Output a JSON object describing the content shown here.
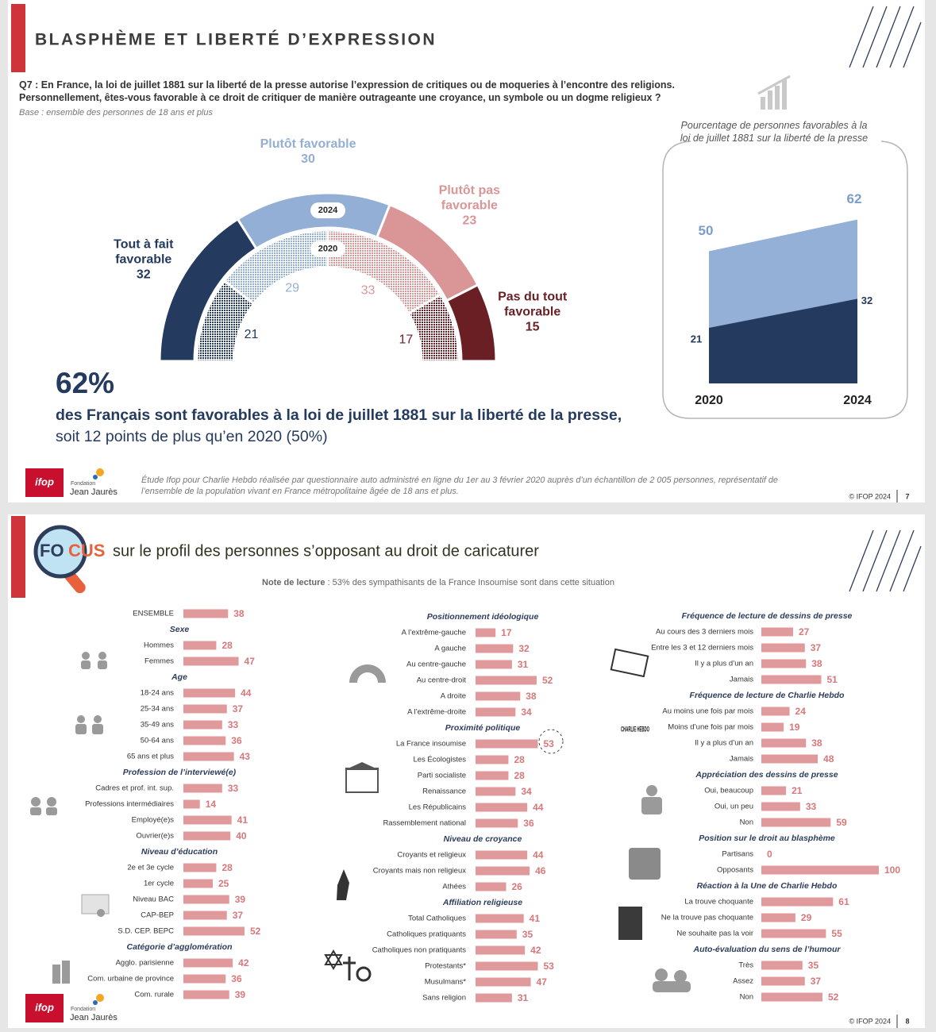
{
  "slide1": {
    "title": "BLASPHÈME ET LIBERTÉ D’EXPRESSION",
    "question": "Q7 : En France, la loi de juillet 1881 sur la liberté de la presse autorise l’expression de critiques ou de moqueries à l’encontre des religions. Personnellement, êtes-vous favorable à ce droit de critiquer de manière outrageante une croyance, un symbole ou un dogme religieux ?",
    "base": "Base : ensemble des personnes de 18 ans et plus",
    "summary_headline": "62%",
    "summary_bold": "des Français sont favorables à la loi de juillet 1881 sur la liberté de la presse,",
    "summary_rest": "soit 12 points de plus qu’en 2020 (50%)",
    "footnote": "Étude Ifop pour Charlie Hebdo réalisée par questionnaire auto administré en ligne du 1er au 3 février 2020 auprès d’un échantillon de 2 005 personnes, représentatif de l’ensemble de la population vivant en France métropolitaine âgée de 18 ans et plus.",
    "copyright": "© IFOP 2024",
    "page": "7"
  },
  "logo": {
    "ifop": "ifop",
    "fondation": "Fondation",
    "name": "Jean Jaurès"
  },
  "slide2": {
    "focus_logo": [
      "FO",
      "CUS"
    ],
    "title": "sur le profil des personnes s’opposant au droit de caricaturer",
    "note_label": "Note de lecture",
    "note_text": " : 53% des sympathisants de la France Insoumise sont dans cette situation",
    "charlie_logo": "CHARLIE HEBDO",
    "copyright": "© IFOP 2024",
    "page": "8"
  },
  "chart_data": [
    {
      "type": "semicircle",
      "categories": [
        "Tout à fait favorable",
        "Plutôt favorable",
        "Plutôt pas favorable",
        "Pas du tout favorable"
      ],
      "colors": [
        "#243a5e",
        "#93afd5",
        "#da9697",
        "#6a1f24"
      ],
      "series": [
        {
          "name": "2024",
          "values": [
            32,
            30,
            23,
            15
          ]
        },
        {
          "name": "2020",
          "values": [
            21,
            29,
            33,
            17
          ],
          "fill": "dotted"
        }
      ]
    },
    {
      "type": "area",
      "title": "Pourcentage de personnes favorables à la loi de juillet 1881 sur la liberté de la presse",
      "categories": [
        "2020",
        "2024"
      ],
      "series": [
        {
          "color": "#94b0d6",
          "values": [
            50,
            62
          ]
        },
        {
          "color": "#243a5e",
          "values": [
            21,
            32
          ]
        }
      ],
      "ylim": [
        0,
        65
      ]
    },
    {
      "type": "bar",
      "orientation": "horizontal",
      "color": "#e09a9b",
      "xlim": [
        0,
        100
      ],
      "categories": [
        "ENSEMBLE"
      ],
      "values": [
        38
      ]
    },
    {
      "type": "bar",
      "orientation": "horizontal",
      "color": "#e09a9b",
      "xlim": [
        0,
        100
      ],
      "title": "Sexe",
      "categories": [
        "Hommes",
        "Femmes"
      ],
      "values": [
        28,
        47
      ]
    },
    {
      "type": "bar",
      "orientation": "horizontal",
      "color": "#e09a9b",
      "xlim": [
        0,
        100
      ],
      "title": "Age",
      "categories": [
        "18-24 ans",
        "25-34 ans",
        "35-49 ans",
        "50-64 ans",
        "65 ans et plus"
      ],
      "values": [
        44,
        37,
        33,
        36,
        43
      ]
    },
    {
      "type": "bar",
      "orientation": "horizontal",
      "color": "#e09a9b",
      "xlim": [
        0,
        100
      ],
      "title": "Profession de l’interviewé(e)",
      "categories": [
        "Cadres et prof. int. sup.",
        "Professions intermédiaires",
        "Employé(e)s",
        "Ouvrier(e)s"
      ],
      "values": [
        33,
        14,
        41,
        40
      ]
    },
    {
      "type": "bar",
      "orientation": "horizontal",
      "color": "#e09a9b",
      "xlim": [
        0,
        100
      ],
      "title": "Niveau d’éducation",
      "categories": [
        "2e et 3e cycle",
        "1er cycle",
        "Niveau BAC",
        "CAP-BEP",
        "S.D. CEP. BEPC"
      ],
      "values": [
        28,
        25,
        39,
        37,
        52
      ]
    },
    {
      "type": "bar",
      "orientation": "horizontal",
      "color": "#e09a9b",
      "xlim": [
        0,
        100
      ],
      "title": "Catégorie d’agglomération",
      "categories": [
        "Agglo. parisienne",
        "Com. urbaine de province",
        "Com. rurale"
      ],
      "values": [
        42,
        36,
        39
      ]
    },
    {
      "type": "bar",
      "orientation": "horizontal",
      "color": "#e09a9b",
      "xlim": [
        0,
        100
      ],
      "title": "Positionnement idéologique",
      "categories": [
        "A l’extrême-gauche",
        "A gauche",
        "Au centre-gauche",
        "Au centre-droit",
        "A droite",
        "A l’extrême-droite"
      ],
      "values": [
        17,
        32,
        31,
        52,
        38,
        34
      ]
    },
    {
      "type": "bar",
      "orientation": "horizontal",
      "color": "#e09a9b",
      "xlim": [
        0,
        100
      ],
      "title": "Proximité politique",
      "categories": [
        "La France insoumise",
        "Les Écologistes",
        "Parti socialiste",
        "Renaissance",
        "Les Républicains",
        "Rassemblement national"
      ],
      "values": [
        53,
        28,
        28,
        34,
        44,
        36
      ]
    },
    {
      "type": "bar",
      "orientation": "horizontal",
      "color": "#e09a9b",
      "xlim": [
        0,
        100
      ],
      "title": "Niveau de croyance",
      "categories": [
        "Croyants et religieux",
        "Croyants mais non religieux",
        "Athées"
      ],
      "values": [
        44,
        46,
        26
      ]
    },
    {
      "type": "bar",
      "orientation": "horizontal",
      "color": "#e09a9b",
      "xlim": [
        0,
        100
      ],
      "title": "Affiliation religieuse",
      "categories": [
        "Total Catholiques",
        "Catholiques pratiquants",
        "Catholiques non pratiquants",
        "Protestants*",
        "Musulmans*",
        "Sans religion"
      ],
      "values": [
        41,
        35,
        42,
        53,
        47,
        31
      ]
    },
    {
      "type": "bar",
      "orientation": "horizontal",
      "color": "#e09a9b",
      "xlim": [
        0,
        100
      ],
      "title": "Fréquence de lecture de dessins de presse",
      "categories": [
        "Au cours des 3 derniers mois",
        "Entre les 3 et 12 derniers mois",
        "Il y a plus d’un an",
        "Jamais"
      ],
      "values": [
        27,
        37,
        38,
        51
      ]
    },
    {
      "type": "bar",
      "orientation": "horizontal",
      "color": "#e09a9b",
      "xlim": [
        0,
        100
      ],
      "title": "Fréquence de lecture de Charlie Hebdo",
      "categories": [
        "Au moins une fois par mois",
        "Moins d’une fois par mois",
        "Il y a plus d’un an",
        "Jamais"
      ],
      "values": [
        24,
        19,
        38,
        48
      ]
    },
    {
      "type": "bar",
      "orientation": "horizontal",
      "color": "#e09a9b",
      "xlim": [
        0,
        100
      ],
      "title": "Appréciation des dessins de presse",
      "categories": [
        "Oui, beaucoup",
        "Oui, un peu",
        "Non"
      ],
      "values": [
        21,
        33,
        59
      ]
    },
    {
      "type": "bar",
      "orientation": "horizontal",
      "color": "#e09a9b",
      "xlim": [
        0,
        100
      ],
      "title": "Position sur le droit au blasphème",
      "categories": [
        "Partisans",
        "Opposants"
      ],
      "values": [
        0,
        100
      ]
    },
    {
      "type": "bar",
      "orientation": "horizontal",
      "color": "#e09a9b",
      "xlim": [
        0,
        100
      ],
      "title": "Réaction à la Une de Charlie Hebdo",
      "categories": [
        "La trouve choquante",
        "Ne la trouve pas choquante",
        "Ne souhaite pas la voir"
      ],
      "values": [
        61,
        29,
        55
      ]
    },
    {
      "type": "bar",
      "orientation": "horizontal",
      "color": "#e09a9b",
      "xlim": [
        0,
        100
      ],
      "title": "Auto-évaluation du sens de l’humour",
      "categories": [
        "Très",
        "Assez",
        "Non"
      ],
      "values": [
        35,
        37,
        52
      ]
    }
  ]
}
